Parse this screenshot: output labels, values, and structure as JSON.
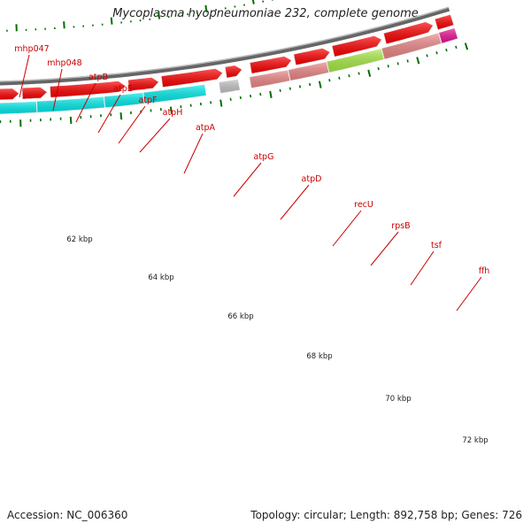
{
  "title": "Mycoplasma hyopneumoniae 232, complete genome",
  "footer": {
    "accession": "Accession: NC_006360",
    "topology": "Topology: circular; Length: 892,758 bp; Genes: 726"
  },
  "colors": {
    "cds_strand": "#ff0000",
    "backbone": "#888888",
    "tick": "#007000",
    "label": "#cc0000",
    "feature_magenta": "#ee1199",
    "feature_cyan": "#00eeee",
    "feature_gray": "#c8c8c8",
    "feature_salmon": "#f08888",
    "feature_green": "#aaee44"
  },
  "axis_labels": [
    "62 kbp",
    "64 kbp",
    "66 kbp",
    "68 kbp",
    "70 kbp",
    "72 kbp"
  ],
  "gene_labels": [
    "mhp047",
    "mhp048",
    "atpB",
    "atpE",
    "atpF",
    "atpH",
    "atpA",
    "atpG",
    "atpD",
    "recU",
    "rpsB",
    "tsf",
    "ffh"
  ]
}
